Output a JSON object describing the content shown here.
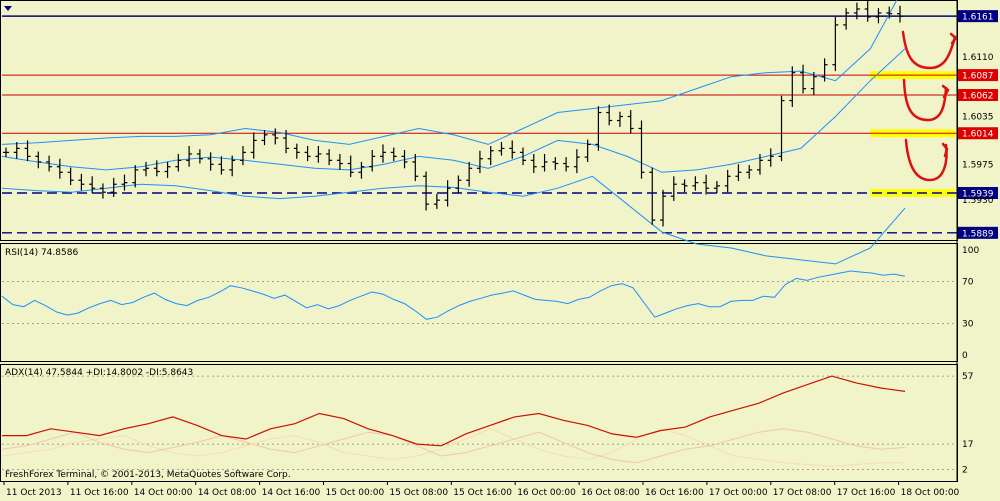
{
  "menu_icon": "dropdown-triangle-icon",
  "colors": {
    "background": "#f0f4c8",
    "candle": "#000000",
    "bollinger": "#1e90ff",
    "rsi_line": "#1e90ff",
    "adx_line": "#cc1100",
    "di_plus": "#f4c6a8",
    "di_minus": "#f6dcb8",
    "resistance": "#cc0000",
    "support": "#000080",
    "highlight": "#ffff00",
    "annotation": "#dd1111",
    "price_tag_bg": "#000080",
    "price_tag_red_bg": "#dd0000"
  },
  "price_axis_ticks": [
    "1.6110",
    "1.6035",
    "1.5975",
    "1.5930"
  ],
  "levels": [
    {
      "price": "1.6161",
      "style": "solid-blue",
      "tag": "dark"
    },
    {
      "price": "1.6087",
      "style": "solid-red",
      "tag": "red"
    },
    {
      "price": "1.6062",
      "style": "solid-red",
      "tag": "red"
    },
    {
      "price": "1.6014",
      "style": "solid-red",
      "tag": "red"
    },
    {
      "price": "1.5939",
      "style": "dashed-blue",
      "tag": "dark"
    },
    {
      "price": "1.5889",
      "style": "dashed-blue",
      "tag": "dark"
    }
  ],
  "rsi_label": "RSI(14) 74.8586",
  "rsi_ticks": [
    "100",
    "70",
    "30",
    "0"
  ],
  "adx_label": "ADX(14) 47.5844 +DI:14.8002 -DI:5.8643",
  "adx_ticks": [
    "57",
    "17",
    "2"
  ],
  "copyright": "FreshForex Terminal, © 2001-2013, MetaQuotes Software Corp.",
  "time_labels": [
    "11 Oct 2013",
    "11 Oct 16:00",
    "14 Oct 00:00",
    "14 Oct 08:00",
    "14 Oct 16:00",
    "15 Oct 00:00",
    "15 Oct 08:00",
    "15 Oct 16:00",
    "16 Oct 00:00",
    "16 Oct 08:00",
    "16 Oct 16:00",
    "17 Oct 00:00",
    "17 Oct 08:00",
    "17 Oct 16:00",
    "18 Oct 00:00"
  ],
  "chart_data": [
    {
      "type": "line",
      "title": "",
      "price_range": [
        1.588,
        1.618
      ],
      "bar_closes": [
        1.599,
        1.5995,
        1.5985,
        1.5978,
        1.5972,
        1.5965,
        1.5955,
        1.595,
        1.5945,
        1.594,
        1.595,
        1.5952,
        1.5968,
        1.597,
        1.5966,
        1.5972,
        1.598,
        1.5988,
        1.5982,
        1.5975,
        1.5968,
        1.598,
        1.599,
        1.6005,
        1.6012,
        1.6008,
        1.5995,
        1.599,
        1.5985,
        1.5988,
        1.598,
        1.5976,
        1.5965,
        1.5972,
        1.5985,
        1.599,
        1.5985,
        1.5978,
        1.596,
        1.5925,
        1.593,
        1.5945,
        1.5955,
        1.597,
        1.5982,
        1.5992,
        1.5995,
        1.599,
        1.598,
        1.5972,
        1.5978,
        1.5976,
        1.5972,
        1.5984,
        1.6,
        1.604,
        1.603,
        1.6035,
        1.602,
        1.5965,
        1.5905,
        1.5935,
        1.595,
        1.5948,
        1.5952,
        1.5945,
        1.5948,
        1.596,
        1.5965,
        1.5968,
        1.598,
        1.5985,
        1.6055,
        1.609,
        1.607,
        1.6085,
        1.61,
        1.615,
        1.6165,
        1.617,
        1.616,
        1.6165,
        1.6164,
        1.6161
      ],
      "bollinger_upper": [
        1.6,
        1.6002,
        1.6005,
        1.6008,
        1.601,
        1.601,
        1.6012,
        1.602,
        1.6015,
        1.6005,
        1.6,
        1.601,
        1.602,
        1.6012,
        1.6,
        1.602,
        1.604,
        1.6045,
        1.605,
        1.6055,
        1.607,
        1.6085,
        1.609,
        1.6092,
        1.608,
        1.612,
        1.62
      ],
      "bollinger_middle": [
        1.5985,
        1.5978,
        1.5972,
        1.5968,
        1.5972,
        1.598,
        1.5984,
        1.598,
        1.5975,
        1.597,
        1.5968,
        1.5975,
        1.5985,
        1.598,
        1.597,
        1.5985,
        1.6005,
        1.6,
        1.5985,
        1.5965,
        1.5968,
        1.5975,
        1.5985,
        1.5995,
        1.6035,
        1.608,
        1.612
      ],
      "bollinger_lower": [
        1.5945,
        1.5942,
        1.594,
        1.5945,
        1.595,
        1.5948,
        1.5942,
        1.5935,
        1.5932,
        1.5935,
        1.594,
        1.5945,
        1.5948,
        1.5946,
        1.594,
        1.5935,
        1.5945,
        1.596,
        1.5925,
        1.589,
        1.5875,
        1.587,
        1.586,
        1.5855,
        1.585,
        1.587,
        1.592
      ]
    },
    {
      "type": "line",
      "title": "RSI(14) 74.8586",
      "ylim": [
        0,
        100
      ],
      "levels": [
        70,
        30
      ],
      "values": [
        56,
        48,
        46,
        52,
        47,
        41,
        38,
        40,
        45,
        49,
        52,
        48,
        50,
        55,
        59,
        53,
        49,
        47,
        52,
        55,
        60,
        66,
        64,
        61,
        58,
        54,
        57,
        51,
        45,
        48,
        44,
        47,
        52,
        56,
        60,
        58,
        53,
        49,
        42,
        34,
        36,
        42,
        47,
        51,
        54,
        57,
        59,
        61,
        57,
        53,
        52,
        51,
        49,
        53,
        55,
        61,
        66,
        68,
        64,
        50,
        36,
        40,
        44,
        47,
        49,
        46,
        46,
        51,
        52,
        52,
        56,
        55,
        67,
        73,
        71,
        74,
        76,
        78,
        80,
        79,
        78,
        76,
        77,
        75
      ]
    },
    {
      "type": "line",
      "title": "ADX(14) 47.5844 +DI:14.8002 -DI:5.8643",
      "ylim": [
        0,
        60
      ],
      "levels": [
        57,
        17,
        2
      ],
      "series": [
        {
          "name": "ADX",
          "values": [
            22,
            22,
            26,
            24,
            22,
            26,
            29,
            33,
            28,
            22,
            20,
            26,
            29,
            35,
            32,
            26,
            22,
            17,
            16,
            23,
            28,
            33,
            35,
            31,
            28,
            23,
            21,
            25,
            27,
            33,
            37,
            41,
            47,
            52,
            57,
            53,
            50,
            48
          ]
        },
        {
          "name": "+DI",
          "values": [
            14,
            16,
            20,
            24,
            18,
            14,
            12,
            15,
            18,
            22,
            18,
            14,
            12,
            16,
            20,
            24,
            22,
            16,
            10,
            12,
            16,
            20,
            24,
            18,
            12,
            8,
            6,
            10,
            14,
            16,
            20,
            24,
            26,
            24,
            20,
            16,
            14,
            15
          ]
        },
        {
          "name": "-DI",
          "values": [
            10,
            12,
            14,
            18,
            20,
            22,
            16,
            12,
            10,
            12,
            16,
            20,
            22,
            18,
            12,
            10,
            8,
            10,
            14,
            20,
            26,
            20,
            14,
            10,
            8,
            12,
            20,
            26,
            22,
            16,
            10,
            8,
            6,
            5,
            4,
            5,
            6,
            6
          ]
        }
      ]
    }
  ]
}
